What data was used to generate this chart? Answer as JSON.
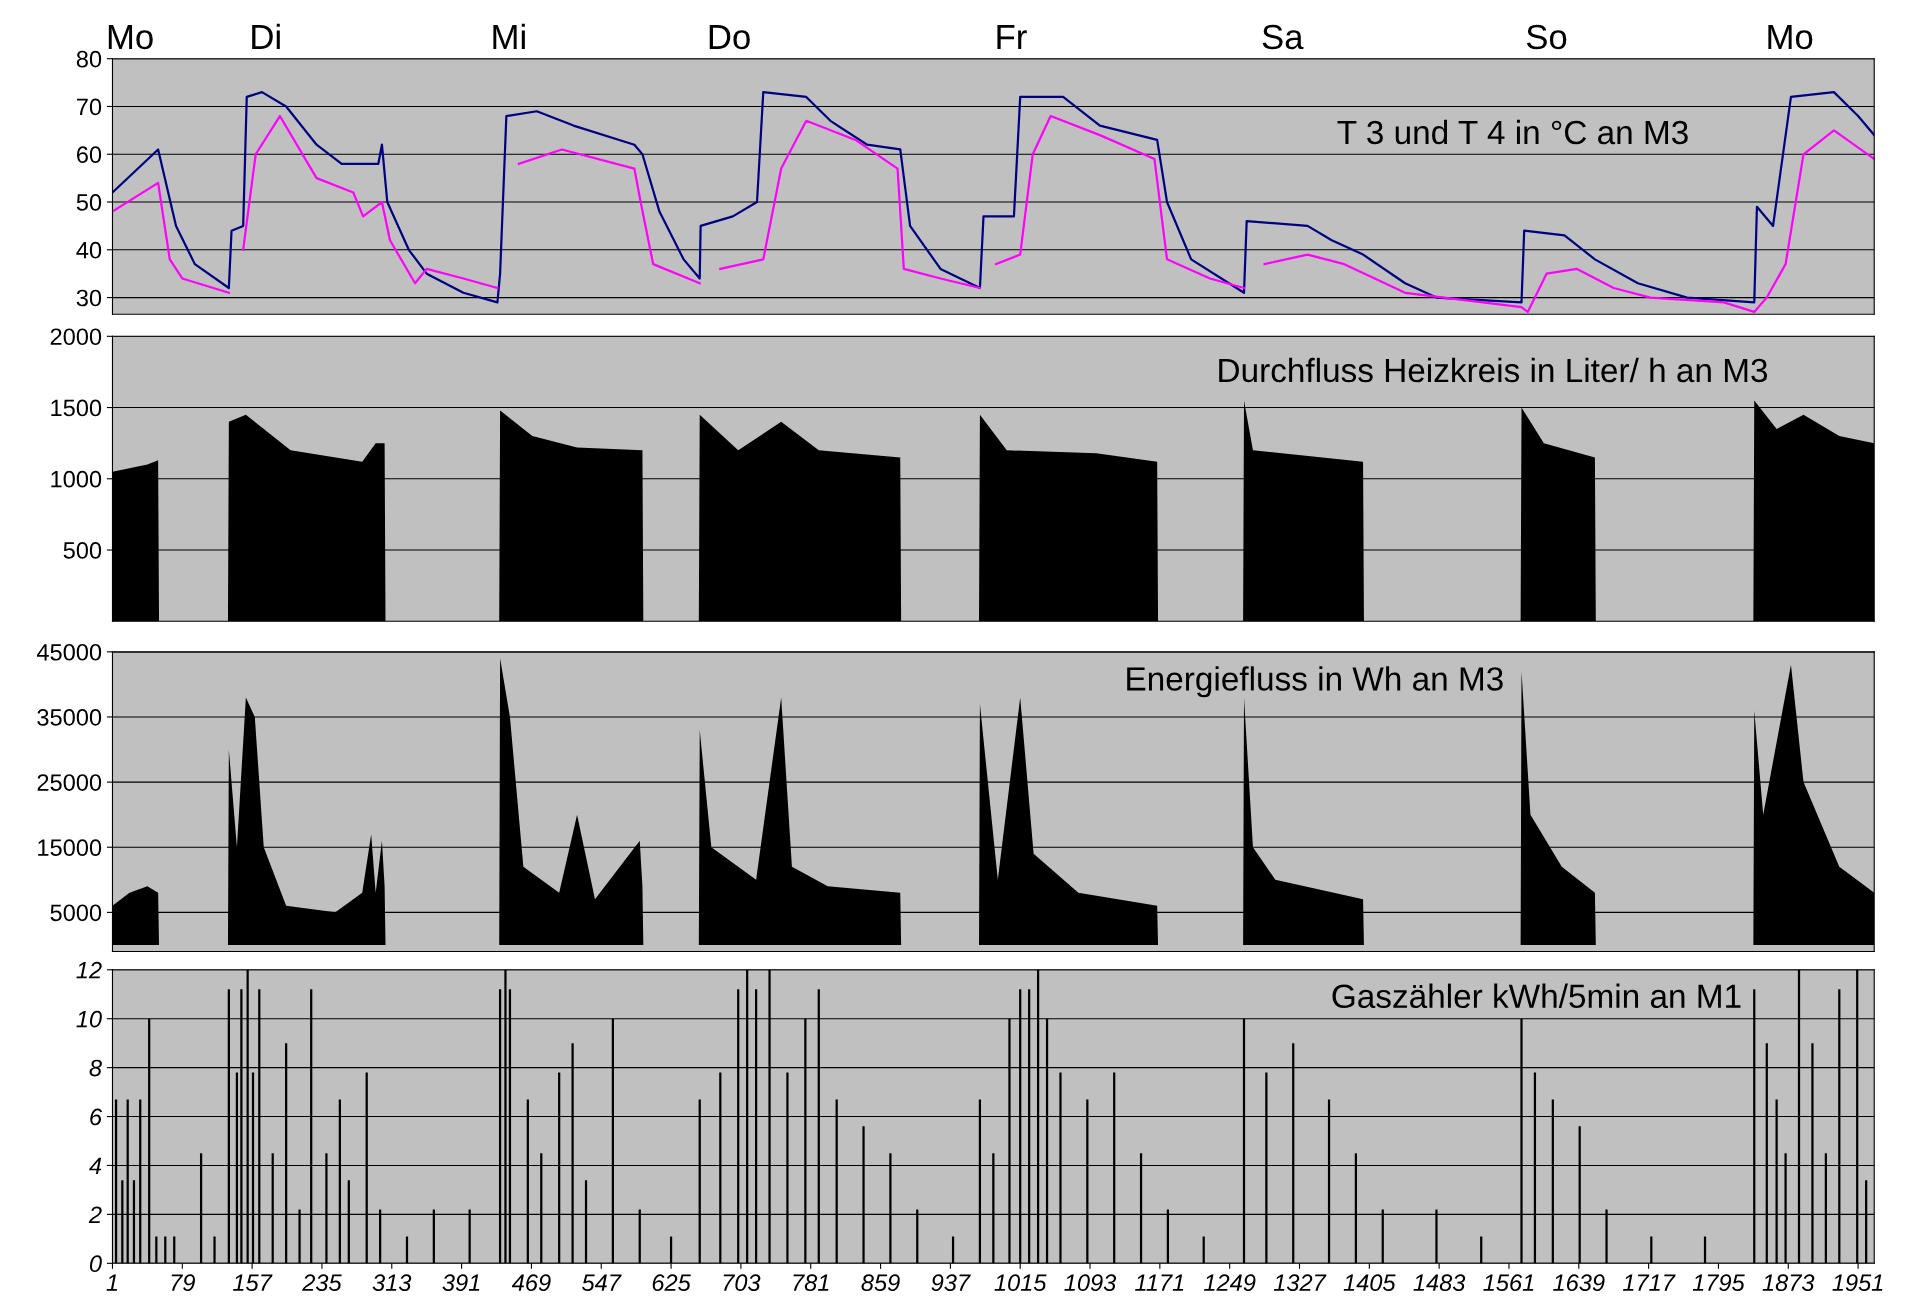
{
  "chart_data": [
    {
      "type": "line",
      "xlim": [
        1,
        1969
      ],
      "ylim": [
        26.5,
        80
      ],
      "yticks": [
        30,
        40,
        50,
        60,
        70,
        80
      ],
      "grid": "y",
      "tick_labels": "y",
      "marker": "none",
      "line_style": "solid",
      "annotations": [
        "T 3 und T 4 in °C an M3",
        "Mo",
        "Di",
        "Mi",
        "Do",
        "Fr",
        "Sa",
        "So",
        "Mo"
      ],
      "series": [
        {
          "color": "#000080",
          "x": [
            1,
            52,
            72,
            93,
            131,
            134,
            147,
            151,
            168,
            195,
            229,
            257,
            298,
            302,
            308,
            332,
            352,
            393,
            431,
            434,
            441,
            475,
            516,
            584,
            593,
            612,
            639,
            657,
            658,
            694,
            721,
            728,
            776,
            803,
            844,
            881,
            892,
            926,
            970,
            974,
            1008,
            1015,
            1063,
            1104,
            1168,
            1179,
            1206,
            1265,
            1268,
            1336,
            1363,
            1398,
            1445,
            1480,
            1575,
            1578,
            1623,
            1657,
            1705,
            1760,
            1835,
            1838,
            1856,
            1876,
            1924,
            1951,
            1969
          ],
          "values": [
            52,
            61,
            45,
            37,
            32,
            44,
            45,
            72,
            73,
            70,
            62,
            58,
            58,
            62,
            50,
            40,
            35,
            31,
            29,
            35,
            68,
            69,
            66,
            62,
            60,
            48,
            38,
            34,
            45,
            47,
            50,
            73,
            72,
            67,
            62,
            61,
            45,
            36,
            32,
            47,
            47,
            72,
            72,
            66,
            63,
            50,
            38,
            31,
            46,
            45,
            42,
            39,
            33,
            30,
            29,
            44,
            43,
            38,
            33,
            30,
            29,
            49,
            45,
            72,
            73,
            68,
            64
          ]
        },
        {
          "color": "#ff00ff",
          "x": [
            1,
            52,
            65,
            79,
            131,
            134,
            147,
            161,
            188,
            229,
            270,
            281,
            302,
            311,
            339,
            352,
            393,
            431,
            437,
            455,
            503,
            584,
            591,
            605,
            657,
            660,
            680,
            728,
            748,
            776,
            831,
            878,
            885,
            926,
            970,
            974,
            988,
            1015,
            1029,
            1049,
            1104,
            1165,
            1179,
            1227,
            1265,
            1268,
            1288,
            1336,
            1377,
            1445,
            1575,
            1582,
            1603,
            1637,
            1678,
            1719,
            1801,
            1835,
            1849,
            1870,
            1890,
            1924,
            1969
          ],
          "values": [
            48,
            54,
            38,
            34,
            31,
            null,
            40,
            60,
            68,
            55,
            52,
            47,
            50,
            42,
            33,
            36,
            34,
            32,
            null,
            58,
            61,
            57,
            50,
            37,
            33,
            null,
            36,
            38,
            57,
            67,
            63,
            57,
            36,
            34,
            32,
            null,
            37,
            39,
            60,
            68,
            64,
            59,
            38,
            34,
            32,
            null,
            37,
            39,
            37,
            31,
            28,
            27,
            35,
            36,
            32,
            30,
            29,
            27,
            30,
            37,
            60,
            65,
            59
          ]
        }
      ]
    },
    {
      "type": "area",
      "xlim": [
        1,
        1969
      ],
      "ylim": [
        0,
        2000
      ],
      "yticks": [
        500,
        1000,
        1500,
        2000
      ],
      "grid": "y",
      "tick_labels": "y",
      "annotations": [
        "Durchfluss Heizkreis in Liter/ h an M3"
      ],
      "series": [
        {
          "color": "#000000",
          "x": [
            1,
            40,
            52,
            53,
            130,
            131,
            150,
            200,
            280,
            295,
            305,
            306,
            433,
            434,
            470,
            520,
            593,
            594,
            656,
            657,
            700,
            748,
            790,
            881,
            882,
            969,
            970,
            1000,
            1100,
            1168,
            1169,
            1264,
            1265,
            1275,
            1398,
            1399,
            1574,
            1575,
            1600,
            1657,
            1658,
            1834,
            1835,
            1860,
            1890,
            1930,
            1969
          ],
          "values": [
            1050,
            1100,
            1130,
            0,
            0,
            1400,
            1450,
            1200,
            1120,
            1250,
            1250,
            0,
            0,
            1480,
            1300,
            1220,
            1200,
            0,
            0,
            1450,
            1200,
            1400,
            1200,
            1150,
            0,
            0,
            1450,
            1200,
            1180,
            1120,
            0,
            0,
            1550,
            1200,
            1120,
            0,
            0,
            1500,
            1250,
            1150,
            0,
            0,
            1550,
            1350,
            1450,
            1300,
            1250
          ]
        }
      ]
    },
    {
      "type": "area",
      "xlim": [
        1,
        1969
      ],
      "ylim": [
        -1000,
        45000
      ],
      "yticks": [
        5000,
        15000,
        25000,
        35000,
        45000
      ],
      "grid": "y",
      "tick_labels": "y",
      "annotations": [
        "Energiefluss in Wh an M3"
      ],
      "series": [
        {
          "color": "#000000",
          "x": [
            1,
            20,
            40,
            52,
            53,
            130,
            131,
            140,
            150,
            160,
            170,
            195,
            250,
            280,
            290,
            295,
            302,
            305,
            306,
            433,
            434,
            445,
            460,
            500,
            520,
            540,
            590,
            593,
            594,
            656,
            657,
            670,
            720,
            748,
            760,
            800,
            881,
            882,
            969,
            970,
            990,
            1015,
            1030,
            1080,
            1168,
            1169,
            1264,
            1265,
            1275,
            1300,
            1398,
            1399,
            1574,
            1575,
            1585,
            1620,
            1657,
            1658,
            1834,
            1835,
            1845,
            1876,
            1890,
            1930,
            1969
          ],
          "values": [
            6000,
            8000,
            9000,
            8000,
            0,
            0,
            30000,
            15000,
            38000,
            35000,
            15000,
            6000,
            5000,
            8000,
            17000,
            8000,
            16000,
            9000,
            0,
            0,
            44000,
            35000,
            12000,
            8000,
            20000,
            7000,
            16000,
            9000,
            0,
            0,
            33000,
            15000,
            10000,
            38000,
            12000,
            9000,
            8000,
            0,
            0,
            37000,
            10000,
            38000,
            14000,
            8000,
            6000,
            0,
            0,
            38000,
            15000,
            10000,
            7000,
            0,
            0,
            42000,
            20000,
            12000,
            8000,
            0,
            0,
            36000,
            20000,
            43000,
            25000,
            12000,
            8000
          ]
        }
      ]
    },
    {
      "type": "bar",
      "xlim": [
        1,
        1969
      ],
      "ylim": [
        0,
        12
      ],
      "yticks": [
        0,
        2,
        4,
        6,
        8,
        10,
        12
      ],
      "xticks": [
        1,
        79,
        157,
        235,
        313,
        391,
        469,
        547,
        625,
        703,
        781,
        859,
        937,
        1015,
        1093,
        1171,
        1249,
        1327,
        1405,
        1483,
        1561,
        1639,
        1717,
        1795,
        1873,
        1951
      ],
      "grid": "y",
      "annotations": [
        "Gaszähler kWh/5min an M1"
      ],
      "series": [
        {
          "color": "#000000",
          "x": [
            5,
            12,
            18,
            25,
            32,
            42,
            50,
            60,
            70,
            100,
            115,
            131,
            140,
            145,
            152,
            158,
            165,
            180,
            195,
            210,
            223,
            240,
            255,
            265,
            285,
            300,
            330,
            360,
            400,
            434,
            440,
            445,
            465,
            480,
            500,
            515,
            530,
            560,
            590,
            625,
            657,
            680,
            700,
            710,
            720,
            735,
            755,
            775,
            790,
            810,
            840,
            870,
            900,
            940,
            970,
            985,
            1003,
            1015,
            1025,
            1035,
            1045,
            1060,
            1090,
            1120,
            1150,
            1180,
            1220,
            1265,
            1290,
            1320,
            1360,
            1390,
            1420,
            1480,
            1530,
            1575,
            1590,
            1610,
            1640,
            1670,
            1720,
            1780,
            1835,
            1849,
            1860,
            1870,
            1885,
            1900,
            1915,
            1930,
            1950,
            1960
          ],
          "values": [
            6.7,
            3.4,
            6.7,
            3.4,
            6.7,
            10,
            1.1,
            1.1,
            1.1,
            4.5,
            1.1,
            11.2,
            7.8,
            11.2,
            12,
            7.8,
            11.2,
            4.5,
            9,
            2.2,
            11.2,
            4.5,
            6.7,
            3.4,
            7.8,
            2.2,
            1.1,
            2.2,
            2.2,
            11.2,
            12,
            11.2,
            6.7,
            4.5,
            7.8,
            9,
            3.4,
            10,
            2.2,
            1.1,
            6.7,
            7.8,
            11.2,
            12,
            11.2,
            12,
            7.8,
            10,
            11.2,
            6.7,
            5.6,
            4.5,
            2.2,
            1.1,
            6.7,
            4.5,
            10,
            11.2,
            11.2,
            12,
            10,
            7.8,
            6.7,
            7.8,
            4.5,
            2.2,
            1.1,
            10,
            7.8,
            9,
            6.7,
            4.5,
            2.2,
            2.2,
            1.1,
            10,
            7.8,
            6.7,
            5.6,
            2.2,
            1.1,
            1.1,
            11.2,
            9,
            6.7,
            4.5,
            12,
            9,
            4.5,
            11.2,
            12,
            3.4
          ]
        }
      ]
    }
  ]
}
